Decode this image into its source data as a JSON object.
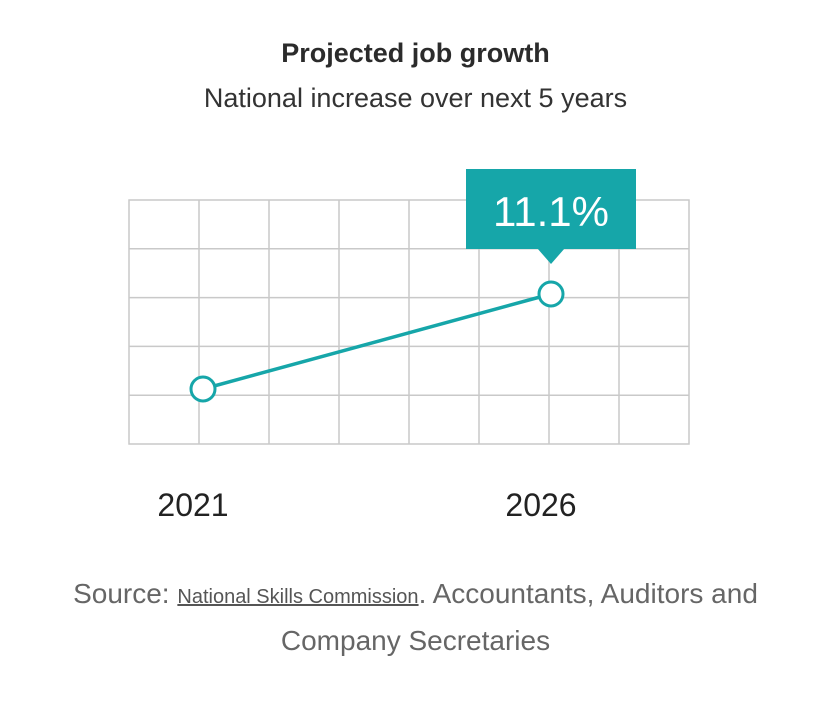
{
  "header": {
    "title": "Projected job growth",
    "subtitle": "National increase over next 5 years"
  },
  "chart_data": {
    "type": "line",
    "title": "Projected job growth",
    "subtitle": "National increase over next 5 years",
    "categories": [
      "2021",
      "2026"
    ],
    "series": [
      {
        "values": [
          0,
          11.1
        ]
      }
    ],
    "annotation": {
      "label": "11.1%",
      "point": "2026"
    },
    "grid": true,
    "colors": {
      "line": "#16a6a9",
      "callout": "#16a6a9",
      "grid": "#c9c9c9"
    }
  },
  "source": {
    "prefix": "Source: ",
    "link_text": "National Skills Commission",
    "suffix": ". Accountants, Auditors and Company Secretaries"
  }
}
